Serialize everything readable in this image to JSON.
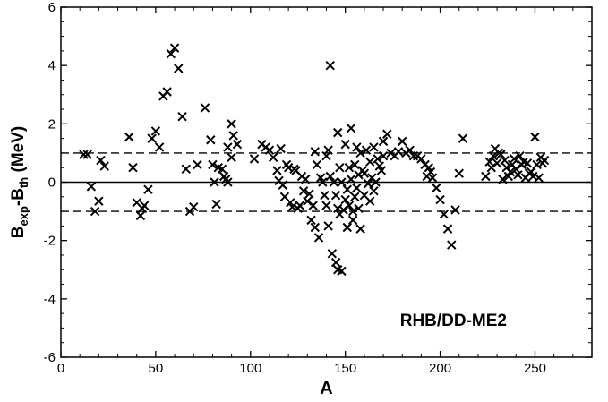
{
  "chart_data": {
    "type": "scatter",
    "xlabel": "A",
    "ylabel": {
      "main": "B",
      "sub1": "exp",
      "mid": "-B",
      "sub2": "th",
      "unit": " (MeV)"
    },
    "annotation": "RHB/DD-ME2",
    "xlim": [
      0,
      280
    ],
    "ylim": [
      -6,
      6
    ],
    "xticks_major": [
      0,
      50,
      100,
      150,
      200,
      250
    ],
    "yticks_major": [
      -6,
      -4,
      -2,
      0,
      2,
      4,
      6
    ],
    "xticks_minor_step": 10,
    "yticks_minor_step": 0.5,
    "reference_lines": [
      {
        "y": 0,
        "style": "solid"
      },
      {
        "y": 1,
        "style": "dashed"
      },
      {
        "y": -1,
        "style": "dashed"
      }
    ],
    "marker": "x",
    "color": "#000000",
    "points": [
      [
        12,
        0.95
      ],
      [
        14,
        0.95
      ],
      [
        16,
        -0.15
      ],
      [
        18,
        -1.0
      ],
      [
        20,
        -0.65
      ],
      [
        21,
        0.75
      ],
      [
        23,
        0.55
      ],
      [
        36,
        1.55
      ],
      [
        38,
        0.5
      ],
      [
        40,
        -0.7
      ],
      [
        42,
        -1.15
      ],
      [
        43,
        -0.9
      ],
      [
        44,
        -0.8
      ],
      [
        46,
        -0.25
      ],
      [
        48,
        1.5
      ],
      [
        50,
        1.75
      ],
      [
        52,
        1.2
      ],
      [
        54,
        2.95
      ],
      [
        56,
        3.1
      ],
      [
        58,
        4.4
      ],
      [
        60,
        4.6
      ],
      [
        62,
        3.9
      ],
      [
        64,
        2.25
      ],
      [
        66,
        0.45
      ],
      [
        68,
        -1.0
      ],
      [
        70,
        -0.85
      ],
      [
        72,
        0.6
      ],
      [
        76,
        2.55
      ],
      [
        79,
        1.45
      ],
      [
        80,
        0.6
      ],
      [
        81,
        0.0
      ],
      [
        82,
        -0.75
      ],
      [
        83,
        0.5
      ],
      [
        85,
        0.45
      ],
      [
        86,
        0.2
      ],
      [
        87,
        0.1
      ],
      [
        88,
        0.0
      ],
      [
        88,
        1.2
      ],
      [
        90,
        2.0
      ],
      [
        90,
        0.85
      ],
      [
        91,
        1.6
      ],
      [
        93,
        1.3
      ],
      [
        102,
        0.8
      ],
      [
        106,
        1.3
      ],
      [
        108,
        1.2
      ],
      [
        110,
        1.1
      ],
      [
        112,
        0.85
      ],
      [
        114,
        0.4
      ],
      [
        115,
        0.05
      ],
      [
        116,
        1.15
      ],
      [
        117,
        -0.1
      ],
      [
        118,
        -0.5
      ],
      [
        119,
        0.6
      ],
      [
        120,
        0.5
      ],
      [
        121,
        -0.7
      ],
      [
        122,
        -0.85
      ],
      [
        123,
        0.45
      ],
      [
        124,
        0.4
      ],
      [
        125,
        -0.9
      ],
      [
        126,
        -0.8
      ],
      [
        127,
        0.2
      ],
      [
        128,
        -0.3
      ],
      [
        129,
        0.1
      ],
      [
        130,
        -0.65
      ],
      [
        131,
        -0.4
      ],
      [
        132,
        -1.3
      ],
      [
        133,
        -0.8
      ],
      [
        134,
        1.05
      ],
      [
        134,
        -1.55
      ],
      [
        135,
        0.6
      ],
      [
        136,
        -1.9
      ],
      [
        137,
        0.15
      ],
      [
        138,
        0.0
      ],
      [
        139,
        -0.45
      ],
      [
        140,
        0.9
      ],
      [
        140,
        -0.8
      ],
      [
        141,
        1.1
      ],
      [
        141,
        -1.5
      ],
      [
        142,
        4.0
      ],
      [
        142,
        0.2
      ],
      [
        143,
        -2.45
      ],
      [
        144,
        0.0
      ],
      [
        145,
        -0.45
      ],
      [
        145,
        -2.75
      ],
      [
        146,
        1.7
      ],
      [
        146,
        -3.0
      ],
      [
        146,
        -0.9
      ],
      [
        147,
        0.5
      ],
      [
        147,
        -1.1
      ],
      [
        148,
        -3.05
      ],
      [
        148,
        0.0
      ],
      [
        149,
        -0.95
      ],
      [
        150,
        -0.6
      ],
      [
        150,
        1.3
      ],
      [
        151,
        -0.25
      ],
      [
        151,
        -1.55
      ],
      [
        152,
        0.5
      ],
      [
        152,
        -0.8
      ],
      [
        153,
        1.85
      ],
      [
        153,
        0.1
      ],
      [
        154,
        -1.0
      ],
      [
        154,
        -1.3
      ],
      [
        155,
        0.6
      ],
      [
        155,
        -0.5
      ],
      [
        156,
        1.2
      ],
      [
        156,
        -0.2
      ],
      [
        157,
        0.25
      ],
      [
        157,
        -0.9
      ],
      [
        158,
        1.0
      ],
      [
        158,
        -1.6
      ],
      [
        159,
        0.4
      ],
      [
        160,
        0.3
      ],
      [
        160,
        -0.45
      ],
      [
        161,
        1.1
      ],
      [
        162,
        -0.05
      ],
      [
        163,
        0.7
      ],
      [
        163,
        -0.65
      ],
      [
        164,
        0.15
      ],
      [
        165,
        1.2
      ],
      [
        165,
        -0.3
      ],
      [
        166,
        0.0
      ],
      [
        167,
        0.8
      ],
      [
        168,
        0.55
      ],
      [
        169,
        0.4
      ],
      [
        170,
        1.4
      ],
      [
        170,
        0.9
      ],
      [
        172,
        1.65
      ],
      [
        174,
        1.0
      ],
      [
        176,
        0.9
      ],
      [
        178,
        1.05
      ],
      [
        180,
        1.4
      ],
      [
        182,
        1.0
      ],
      [
        184,
        1.1
      ],
      [
        186,
        0.9
      ],
      [
        188,
        0.9
      ],
      [
        190,
        0.8
      ],
      [
        192,
        0.6
      ],
      [
        193,
        0.2
      ],
      [
        194,
        0.5
      ],
      [
        195,
        0.35
      ],
      [
        196,
        0.15
      ],
      [
        198,
        -0.2
      ],
      [
        200,
        -0.6
      ],
      [
        202,
        -1.1
      ],
      [
        204,
        -1.6
      ],
      [
        206,
        -2.15
      ],
      [
        208,
        -0.95
      ],
      [
        210,
        0.3
      ],
      [
        212,
        1.5
      ],
      [
        224,
        0.2
      ],
      [
        226,
        0.7
      ],
      [
        227,
        0.5
      ],
      [
        228,
        0.9
      ],
      [
        229,
        1.15
      ],
      [
        230,
        0.65
      ],
      [
        231,
        1.0
      ],
      [
        232,
        0.95
      ],
      [
        233,
        0.1
      ],
      [
        234,
        0.75
      ],
      [
        235,
        0.5
      ],
      [
        236,
        0.2
      ],
      [
        237,
        0.35
      ],
      [
        238,
        0.6
      ],
      [
        239,
        0.8
      ],
      [
        240,
        0.45
      ],
      [
        241,
        0.25
      ],
      [
        242,
        0.9
      ],
      [
        243,
        0.6
      ],
      [
        244,
        0.7
      ],
      [
        245,
        0.15
      ],
      [
        246,
        0.65
      ],
      [
        247,
        0.3
      ],
      [
        248,
        0.35
      ],
      [
        249,
        0.2
      ],
      [
        250,
        1.55
      ],
      [
        251,
        0.6
      ],
      [
        252,
        0.15
      ],
      [
        253,
        0.85
      ],
      [
        254,
        0.65
      ],
      [
        255,
        0.75
      ]
    ]
  }
}
